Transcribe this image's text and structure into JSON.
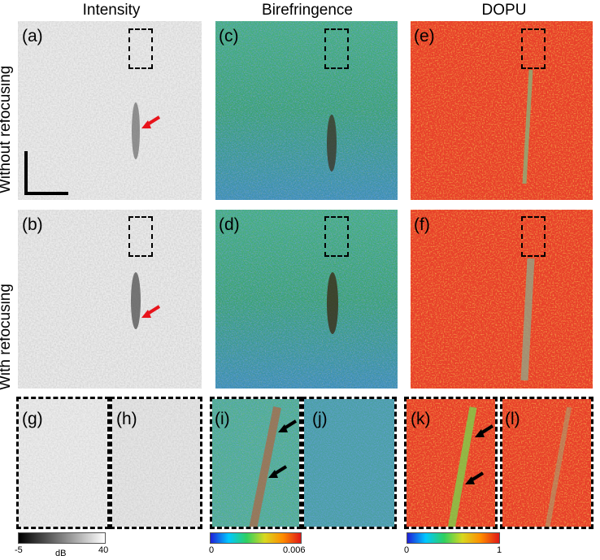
{
  "columns": [
    "Intensity",
    "Birefringence",
    "DOPU"
  ],
  "rows": [
    "Without refocusing",
    "With refocusing"
  ],
  "panel_labels": [
    "(a)",
    "(b)",
    "(c)",
    "(d)",
    "(e)",
    "(f)",
    "(g)",
    "(h)",
    "(i)",
    "(j)",
    "(k)",
    "(l)"
  ],
  "colorbars": {
    "intensity": {
      "min": "-5",
      "max": "40",
      "unit": "dB"
    },
    "birefringence": {
      "min": "0",
      "max": "0.006"
    },
    "dopu": {
      "min": "0",
      "max": "1"
    }
  },
  "colors": {
    "arrow_red": "#e8131b",
    "arrow_black": "#000000"
  }
}
